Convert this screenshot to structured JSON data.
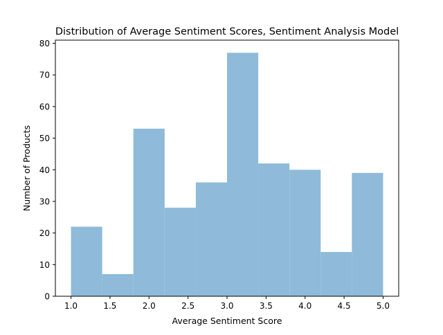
{
  "chart_data": {
    "type": "bar",
    "subtype": "histogram",
    "title": "Distribution of Average Sentiment Scores, Sentiment Analysis Model",
    "xlabel": "Average Sentiment Score",
    "ylabel": "Number of Products",
    "bin_edges": [
      1.0,
      1.4,
      1.8,
      2.2,
      2.6,
      3.0,
      3.4,
      3.8,
      4.2,
      4.6,
      5.0
    ],
    "values": [
      22,
      7,
      53,
      28,
      36,
      77,
      42,
      40,
      14,
      39
    ],
    "xlim": [
      0.8,
      5.2
    ],
    "ylim": [
      0,
      81
    ],
    "xticks": [
      1.0,
      1.5,
      2.0,
      2.5,
      3.0,
      3.5,
      4.0,
      4.5,
      5.0
    ],
    "xtick_labels": [
      "1.0",
      "1.5",
      "2.0",
      "2.5",
      "3.0",
      "3.5",
      "4.0",
      "4.5",
      "5.0"
    ],
    "yticks": [
      0,
      10,
      20,
      30,
      40,
      50,
      60,
      70,
      80
    ],
    "ytick_labels": [
      "0",
      "10",
      "20",
      "30",
      "40",
      "50",
      "60",
      "70",
      "80"
    ],
    "bar_color": "#8fbad9",
    "grid": false,
    "legend": "none"
  }
}
